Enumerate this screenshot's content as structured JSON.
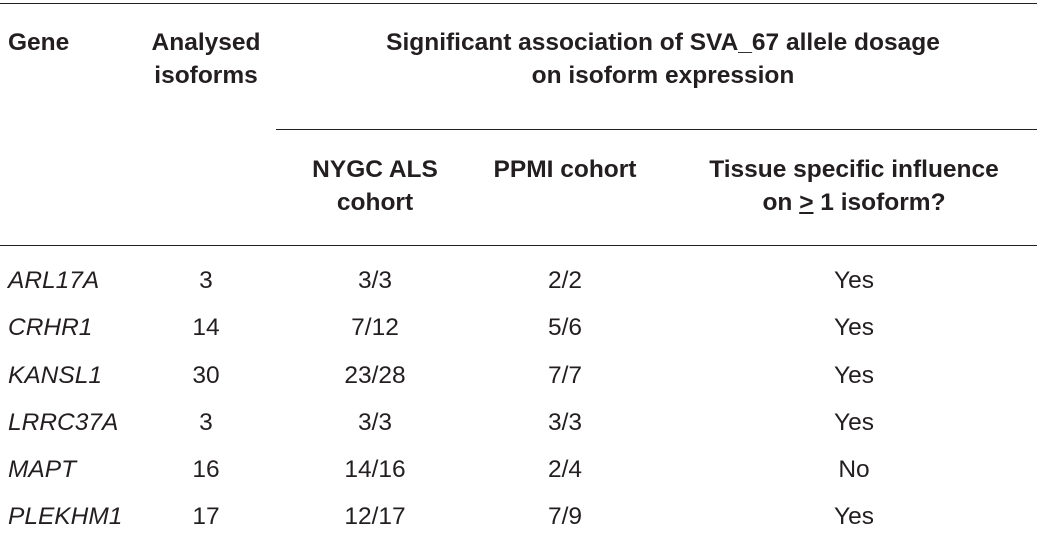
{
  "table": {
    "headers": {
      "gene": "Gene",
      "isoforms_line1": "Analysed",
      "isoforms_line2": "isoforms",
      "spanning_line1": "Significant association of SVA_67 allele dosage",
      "spanning_line2": "on isoform expression",
      "nygc_line1": "NYGC ALS",
      "nygc_line2": "cohort",
      "ppmi": "PPMI cohort",
      "tissue_line1": "Tissue specific influence",
      "tissue_line2_prefix": "on ",
      "tissue_line2_symbol": ">",
      "tissue_line2_suffix": " 1 isoform?"
    },
    "rows": [
      {
        "gene": "ARL17A",
        "isoforms": "3",
        "nygc": "3/3",
        "ppmi": "2/2",
        "tissue": "Yes"
      },
      {
        "gene": "CRHR1",
        "isoforms": "14",
        "nygc": "7/12",
        "ppmi": "5/6",
        "tissue": "Yes"
      },
      {
        "gene": "KANSL1",
        "isoforms": "30",
        "nygc": "23/28",
        "ppmi": "7/7",
        "tissue": "Yes"
      },
      {
        "gene": "LRRC37A",
        "isoforms": "3",
        "nygc": "3/3",
        "ppmi": "3/3",
        "tissue": "Yes"
      },
      {
        "gene": "MAPT",
        "isoforms": "16",
        "nygc": "14/16",
        "ppmi": "2/4",
        "tissue": "No"
      },
      {
        "gene": "PLEKHM1",
        "isoforms": "17",
        "nygc": "12/17",
        "ppmi": "7/9",
        "tissue": "Yes"
      }
    ]
  }
}
